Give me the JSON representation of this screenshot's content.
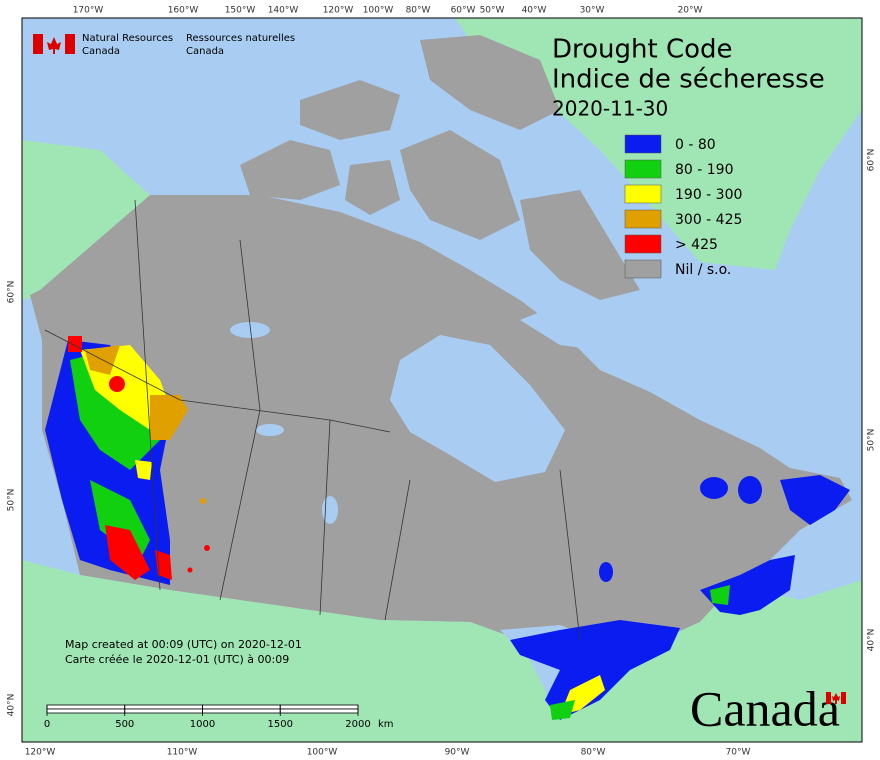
{
  "header": {
    "agency_en": [
      "Natural Resources",
      "Canada"
    ],
    "agency_fr": [
      "Ressources naturelles",
      "Canada"
    ]
  },
  "title": {
    "en": "Drought Code",
    "fr": "Indice de sécheresse",
    "date": "2020-11-30"
  },
  "legend": [
    {
      "label": "0 - 80",
      "color": "#0a1cf0"
    },
    {
      "label": "80 - 190",
      "color": "#10d010"
    },
    {
      "label": "190 - 300",
      "color": "#ffff00"
    },
    {
      "label": "300 - 425",
      "color": "#e0a000"
    },
    {
      "label": "> 425",
      "color": "#ff0000"
    },
    {
      "label": "Nil / s.o.",
      "color": "#a0a0a0"
    }
  ],
  "top_longitudes": [
    "170°W",
    "160°W",
    "150°W",
    "140°W",
    "120°W",
    "100°W",
    "80°W",
    "60°W",
    "50°W",
    "40°W",
    "30°W",
    "20°W"
  ],
  "bottom_longitudes": [
    "120°W",
    "110°W",
    "100°W",
    "90°W",
    "80°W",
    "70°W"
  ],
  "left_latitudes": [
    "60°N",
    "50°N",
    "40°N"
  ],
  "right_latitudes": [
    "60°N",
    "50°N",
    "40°N"
  ],
  "credits": [
    "Map created at 00:09 (UTC) on 2020-12-01",
    "Carte créée le 2020-12-01 (UTC) à 00:09"
  ],
  "scale_bar": {
    "ticks": [
      0,
      500,
      1000,
      1500,
      2000
    ],
    "unit": "km"
  },
  "wordmark": "Canada"
}
